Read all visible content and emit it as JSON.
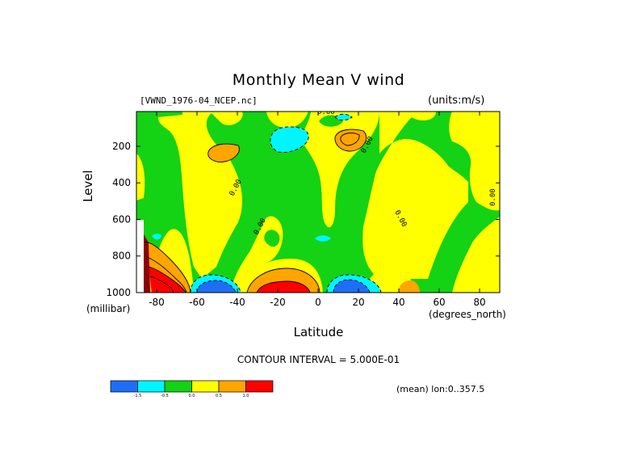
{
  "chart_data": {
    "type": "heatmap",
    "title": "Monthly Mean V wind",
    "dataset_label": "[VWND_1976-04_NCEP.nc]",
    "units_label": "(units:m/s)",
    "xlabel": "Latitude",
    "xunit": "(degrees_north)",
    "ylabel": "Level",
    "yunit": "(millibar)",
    "xlim": [
      -90,
      90
    ],
    "ylim": [
      1000,
      10
    ],
    "x_ticks": [
      -80,
      -60,
      -40,
      -20,
      0,
      20,
      40,
      60,
      80
    ],
    "y_ticks": [
      200,
      400,
      600,
      800,
      1000
    ],
    "contour_interval_text": "CONTOUR INTERVAL = 5.000E-01",
    "mean_label": "(mean) lon:0..357.5",
    "contour_labels": [
      "0.00",
      "0.00",
      "0.00",
      "0.00",
      "0.00",
      "0.00"
    ],
    "levels": [
      "-1.5",
      "-0.5",
      "0.0",
      "0.5",
      "1.0"
    ],
    "colorbar": [
      {
        "range": "< -1.5",
        "color": "#1e6ef5"
      },
      {
        "range": "-1.5 to -0.5",
        "color": "#00f5ff"
      },
      {
        "range": "-0.5 to 0.0",
        "color": "#14d214"
      },
      {
        "range": "0.0 to 0.5",
        "color": "#ffff00"
      },
      {
        "range": "0.5 to 1.0",
        "color": "#ffa500"
      },
      {
        "range": "> 1.0",
        "color": "#ff0000"
      }
    ],
    "extreme_color": "#8b0000",
    "regions": [
      {
        "lat": [
          -90,
          -88
        ],
        "level": [
          10,
          480
        ],
        "value_class": "0.0 to 0.5"
      },
      {
        "lat": [
          -75,
          -35
        ],
        "level": [
          10,
          870
        ],
        "value_class": "0.0 to 0.5"
      },
      {
        "lat": [
          -52,
          -43
        ],
        "level": [
          170,
          240
        ],
        "value_class": "0.5 to 1.0"
      },
      {
        "lat": [
          -28,
          -15
        ],
        "level": [
          10,
          160
        ],
        "value_class": "0.0 to 0.5"
      },
      {
        "lat": [
          -15,
          5
        ],
        "level": [
          90,
          130
        ],
        "value_class": "-1.5 to -0.5"
      },
      {
        "lat": [
          8,
          18
        ],
        "level": [
          100,
          170
        ],
        "value_class": "0.5 to 1.0"
      },
      {
        "lat": [
          5,
          35
        ],
        "level": [
          100,
          500
        ],
        "value_class": "0.0 to 0.5"
      },
      {
        "lat": [
          20,
          70
        ],
        "level": [
          600,
          1000
        ],
        "value_class": "0.0 to 0.5"
      },
      {
        "lat": [
          70,
          90
        ],
        "level": [
          10,
          700
        ],
        "value_class": "0.0 to 0.5"
      },
      {
        "lat": [
          -30,
          -5
        ],
        "level": [
          880,
          1000
        ],
        "value_class": "> 1.0"
      },
      {
        "lat": [
          -60,
          -45
        ],
        "level": [
          900,
          1000
        ],
        "value_class": "< -1.5"
      },
      {
        "lat": [
          10,
          25
        ],
        "level": [
          910,
          1000
        ],
        "value_class": "< -1.5"
      },
      {
        "lat": [
          -88,
          -75
        ],
        "level": [
          830,
          1000
        ],
        "value_class": "> 1.0"
      },
      {
        "lat": [
          40,
          45
        ],
        "level": [
          960,
          1000
        ],
        "value_class": "0.5 to 1.0"
      }
    ]
  }
}
